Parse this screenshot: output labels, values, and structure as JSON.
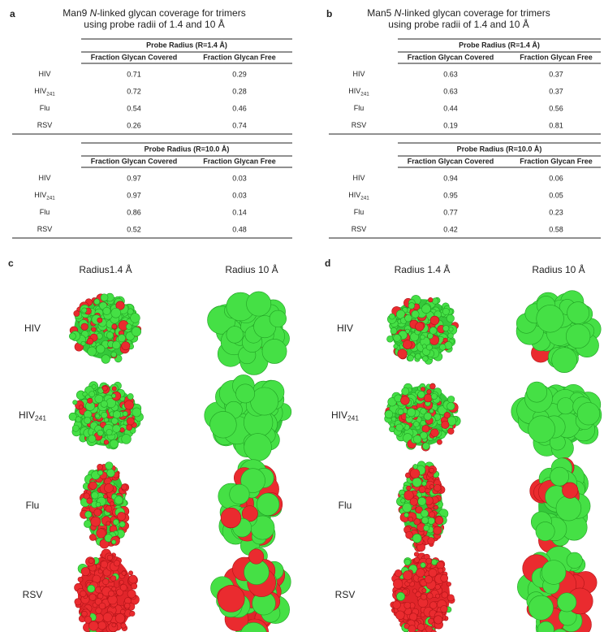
{
  "panels": [
    {
      "label": "a",
      "title": [
        "Man9 ",
        "N",
        "-linked glycan coverage for trimers",
        "using probe radii of 1.4 and 10 Å"
      ],
      "tables": [
        {
          "header": "Probe Radius (R=1.4 Å)",
          "columns": [
            "Fraction Glycan Covered",
            "Fraction Glycan Free"
          ],
          "rows": [
            {
              "name": "HIV",
              "values": [
                0.71,
                0.29
              ]
            },
            {
              "name": "HIV",
              "sub": "241",
              "values": [
                0.72,
                0.28
              ]
            },
            {
              "name": "Flu",
              "values": [
                0.54,
                0.46
              ]
            },
            {
              "name": "RSV",
              "values": [
                0.26,
                0.74
              ]
            }
          ]
        },
        {
          "header": "Probe Radius (R=10.0 Å)",
          "columns": [
            "Fraction Glycan Covered",
            "Fraction Glycan Free"
          ],
          "rows": [
            {
              "name": "HIV",
              "values": [
                0.97,
                0.03
              ]
            },
            {
              "name": "HIV",
              "sub": "241",
              "values": [
                0.97,
                0.03
              ]
            },
            {
              "name": "Flu",
              "values": [
                0.86,
                0.14
              ]
            },
            {
              "name": "RSV",
              "values": [
                0.52,
                0.48
              ]
            }
          ]
        }
      ]
    },
    {
      "label": "b",
      "title": [
        "Man5 ",
        "N",
        "-linked glycan coverage for trimers",
        "using probe radii of 1.4 and 10 Å"
      ],
      "tables": [
        {
          "header": "Probe Radius (R=1.4 Å)",
          "columns": [
            "Fraction Glycan Covered",
            "Fraction Glycan Free"
          ],
          "rows": [
            {
              "name": "HIV",
              "values": [
                0.63,
                0.37
              ]
            },
            {
              "name": "HIV",
              "sub": "241",
              "values": [
                0.63,
                0.37
              ]
            },
            {
              "name": "Flu",
              "values": [
                0.44,
                0.56
              ]
            },
            {
              "name": "RSV",
              "values": [
                0.19,
                0.81
              ]
            }
          ]
        },
        {
          "header": "Probe Radius (R=10.0 Å)",
          "columns": [
            "Fraction Glycan Covered",
            "Fraction Glycan Free"
          ],
          "rows": [
            {
              "name": "HIV",
              "values": [
                0.94,
                0.06
              ]
            },
            {
              "name": "HIV",
              "sub": "241",
              "values": [
                0.95,
                0.05
              ]
            },
            {
              "name": "Flu",
              "values": [
                0.77,
                0.23
              ]
            },
            {
              "name": "RSV",
              "values": [
                0.42,
                0.58
              ]
            }
          ]
        }
      ]
    }
  ],
  "images": [
    {
      "label": "c",
      "columns": [
        "Radius1.4 Å",
        "Radius 10 Å"
      ],
      "rows": [
        {
          "name": "HIV"
        },
        {
          "name": "HIV",
          "sub": "241"
        },
        {
          "name": "Flu"
        },
        {
          "name": "RSV"
        }
      ]
    },
    {
      "label": "d",
      "columns": [
        "Radius 1.4 Å",
        "Radius 10 Å"
      ],
      "rows": [
        {
          "name": "HIV"
        },
        {
          "name": "HIV",
          "sub": "241"
        },
        {
          "name": "Flu"
        },
        {
          "name": "RSV"
        }
      ]
    }
  ]
}
